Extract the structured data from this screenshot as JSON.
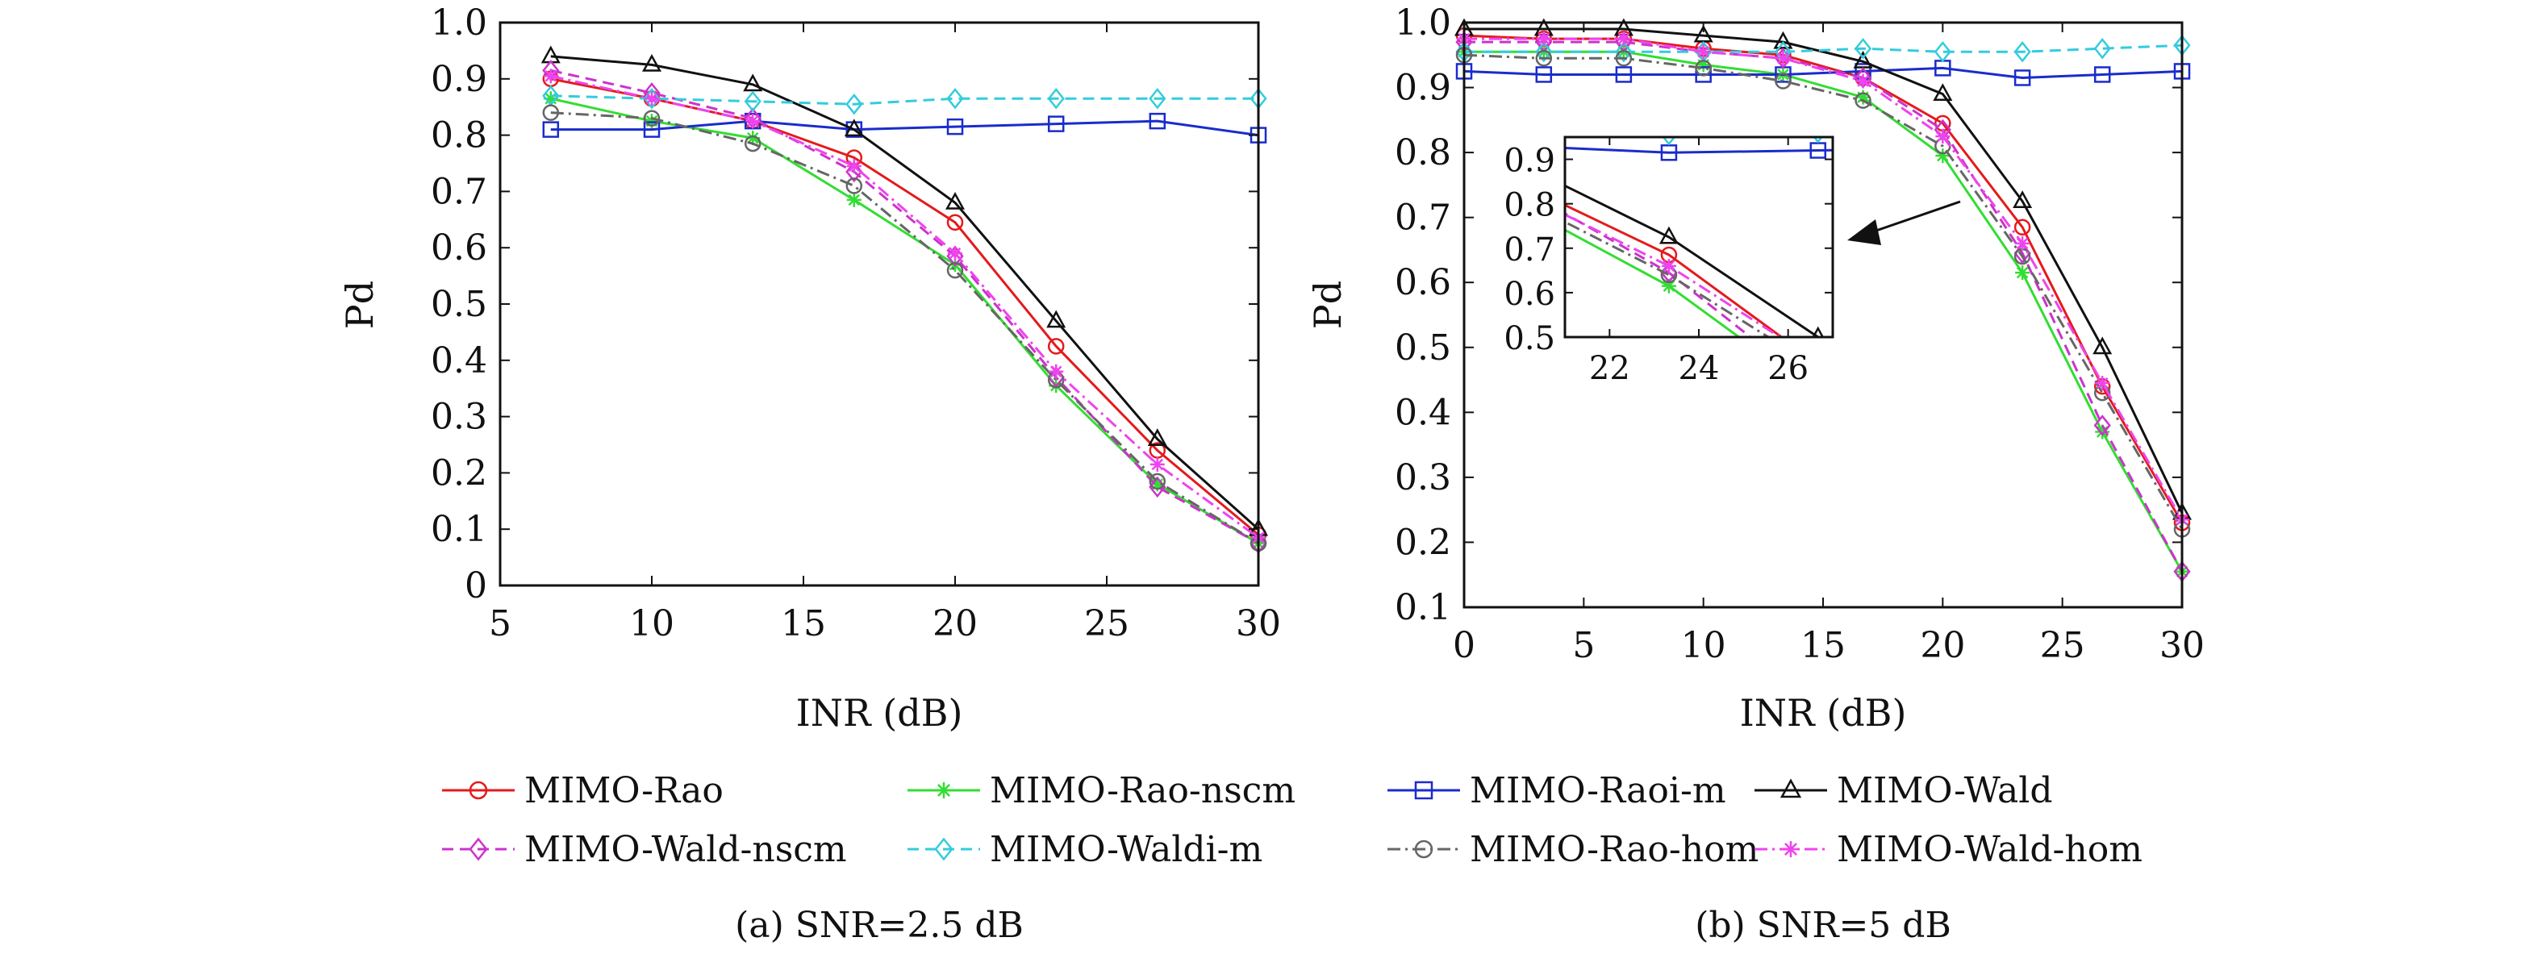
{
  "series_styles": [
    {
      "name": "MIMO-Rao",
      "color": "#e41a1c",
      "marker": "circle",
      "dash": "solid"
    },
    {
      "name": "MIMO-Rao-nscm",
      "color": "#33dd33",
      "marker": "star",
      "dash": "solid"
    },
    {
      "name": "MIMO-Raoi-m",
      "color": "#1a2ccc",
      "marker": "square",
      "dash": "solid"
    },
    {
      "name": "MIMO-Wald",
      "color": "#111111",
      "marker": "triangle",
      "dash": "solid"
    },
    {
      "name": "MIMO-Wald-nscm",
      "color": "#cc33cc",
      "marker": "diamond",
      "dash": "dashed"
    },
    {
      "name": "MIMO-Waldi-m",
      "color": "#33ccdd",
      "marker": "diamond",
      "dash": "dashed"
    },
    {
      "name": "MIMO-Rao-hom",
      "color": "#666666",
      "marker": "circle",
      "dash": "dashdot"
    },
    {
      "name": "MIMO-Wald-hom",
      "color": "#ee44ee",
      "marker": "star",
      "dash": "dashdot"
    }
  ],
  "chart_data": [
    {
      "type": "line",
      "caption": "(a) SNR=2.5 dB",
      "xlabel": "INR (dB)",
      "ylabel": "Pd",
      "xlim": [
        5,
        30
      ],
      "ylim": [
        0,
        1.0
      ],
      "xticks": [
        "5",
        "10",
        "15",
        "20",
        "25",
        "30"
      ],
      "yticks": [
        "0",
        "0.1",
        "0.2",
        "0.3",
        "0.4",
        "0.5",
        "0.6",
        "0.7",
        "0.8",
        "0.9",
        "1.0"
      ],
      "grid": false,
      "x": [
        6.67,
        10,
        13.33,
        16.67,
        20,
        23.33,
        26.67,
        30
      ],
      "series": [
        {
          "name": "MIMO-Rao",
          "values": [
            0.9,
            0.865,
            0.825,
            0.76,
            0.645,
            0.425,
            0.24,
            0.09
          ]
        },
        {
          "name": "MIMO-Rao-nscm",
          "values": [
            0.865,
            0.825,
            0.795,
            0.685,
            0.57,
            0.355,
            0.18,
            0.075
          ]
        },
        {
          "name": "MIMO-Raoi-m",
          "values": [
            0.81,
            0.81,
            0.825,
            0.81,
            0.815,
            0.82,
            0.825,
            0.8
          ]
        },
        {
          "name": "MIMO-Wald",
          "values": [
            0.94,
            0.925,
            0.89,
            0.81,
            0.68,
            0.47,
            0.26,
            0.1
          ]
        },
        {
          "name": "MIMO-Wald-nscm",
          "values": [
            0.915,
            0.875,
            0.83,
            0.735,
            0.585,
            0.37,
            0.175,
            0.075
          ]
        },
        {
          "name": "MIMO-Waldi-m",
          "values": [
            0.87,
            0.865,
            0.86,
            0.855,
            0.865,
            0.865,
            0.865,
            0.865
          ]
        },
        {
          "name": "MIMO-Rao-hom",
          "values": [
            0.84,
            0.83,
            0.785,
            0.71,
            0.56,
            0.365,
            0.185,
            0.075
          ]
        },
        {
          "name": "MIMO-Wald-hom",
          "values": [
            0.905,
            0.865,
            0.825,
            0.745,
            0.59,
            0.38,
            0.215,
            0.085
          ]
        }
      ]
    },
    {
      "type": "line",
      "caption": "(b) SNR=5 dB",
      "xlabel": "INR (dB)",
      "ylabel": "Pd",
      "xlim": [
        0,
        30
      ],
      "ylim": [
        0.1,
        1.0
      ],
      "xticks": [
        "0",
        "5",
        "10",
        "15",
        "20",
        "25",
        "30"
      ],
      "yticks": [
        "0.1",
        "0.2",
        "0.3",
        "0.4",
        "0.5",
        "0.6",
        "0.7",
        "0.8",
        "0.9",
        "1.0"
      ],
      "grid": false,
      "x": [
        0,
        3.33,
        6.67,
        10,
        13.33,
        16.67,
        20,
        23.33,
        26.67,
        30
      ],
      "series": [
        {
          "name": "MIMO-Rao",
          "values": [
            0.98,
            0.975,
            0.975,
            0.96,
            0.95,
            0.915,
            0.845,
            0.685,
            0.44,
            0.23
          ]
        },
        {
          "name": "MIMO-Rao-nscm",
          "values": [
            0.955,
            0.955,
            0.955,
            0.935,
            0.92,
            0.885,
            0.795,
            0.615,
            0.37,
            0.155
          ]
        },
        {
          "name": "MIMO-Raoi-m",
          "values": [
            0.925,
            0.92,
            0.92,
            0.92,
            0.92,
            0.925,
            0.93,
            0.915,
            0.92,
            0.925
          ]
        },
        {
          "name": "MIMO-Wald",
          "values": [
            0.99,
            0.99,
            0.99,
            0.98,
            0.97,
            0.94,
            0.89,
            0.725,
            0.5,
            0.245
          ]
        },
        {
          "name": "MIMO-Wald-nscm",
          "values": [
            0.97,
            0.97,
            0.97,
            0.955,
            0.945,
            0.915,
            0.835,
            0.645,
            0.38,
            0.155
          ]
        },
        {
          "name": "MIMO-Waldi-m",
          "values": [
            0.955,
            0.955,
            0.955,
            0.955,
            0.955,
            0.96,
            0.955,
            0.955,
            0.96,
            0.965
          ]
        },
        {
          "name": "MIMO-Rao-hom",
          "values": [
            0.95,
            0.945,
            0.945,
            0.93,
            0.91,
            0.88,
            0.81,
            0.64,
            0.43,
            0.22
          ]
        },
        {
          "name": "MIMO-Wald-hom",
          "values": [
            0.975,
            0.975,
            0.975,
            0.955,
            0.945,
            0.91,
            0.825,
            0.66,
            0.445,
            0.235
          ]
        }
      ],
      "inset": {
        "xlim": [
          21,
          27
        ],
        "ylim": [
          0.5,
          0.95
        ],
        "xticks": [
          "22",
          "24",
          "26"
        ],
        "yticks": [
          "0.5",
          "0.6",
          "0.7",
          "0.8",
          "0.9"
        ]
      }
    }
  ]
}
